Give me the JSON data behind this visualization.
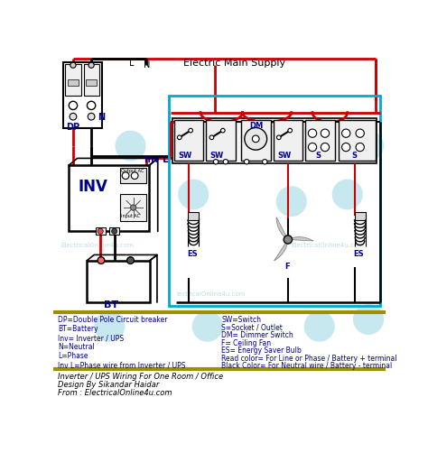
{
  "title": "Electric Main Supply",
  "bg_color": "#ffffff",
  "wire_red": "#cc0000",
  "wire_black": "#000000",
  "room_border": "#00aacc",
  "label_color": "#00008B",
  "legend_border_color": "#8B8000",
  "legend_items_left": [
    "DP=Double Pole Circuit breaker",
    "BT=Battery",
    "Inv= Inverter / UPS",
    "N=Neutral",
    "L=Phase",
    "Inv L=Phase wire from Inverter / UPS"
  ],
  "legend_items_right": [
    "SW=Switch",
    "S=Socket / Outlet",
    "DM= Dimmer Switch",
    "F= Ceiling Fan",
    "ES= Energy Saver Bulb",
    "Read color= For Line or Phase / Battery + terminal",
    "Black Color= For Neutral wire / Battery - terminal"
  ],
  "footer_lines": [
    "Inverter / UPS Wiring For One Room / Office",
    "Design By Sikandar Haidar",
    "From : ElectricalOnline4u.com"
  ]
}
